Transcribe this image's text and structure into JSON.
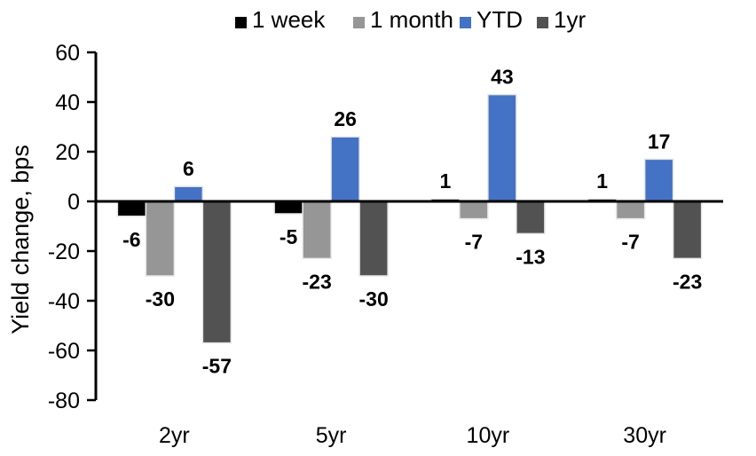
{
  "chart_data": {
    "type": "bar",
    "title": "",
    "categories": [
      "2yr",
      "5yr",
      "10yr",
      "30yr"
    ],
    "series": [
      {
        "name": "1 week",
        "color": "#000000",
        "values": [
          -6,
          -5,
          1,
          1
        ]
      },
      {
        "name": "1 month",
        "color": "#969696",
        "values": [
          -30,
          -23,
          -7,
          -7
        ]
      },
      {
        "name": "YTD",
        "color": "#4472C4",
        "values": [
          6,
          26,
          43,
          17
        ]
      },
      {
        "name": "1yr",
        "color": "#525252",
        "values": [
          -57,
          -30,
          -13,
          -23
        ]
      }
    ],
    "ylabel": "Yield change, bps",
    "xlabel": "",
    "ylim": [
      -80,
      60
    ],
    "yticks": [
      60,
      40,
      20,
      0,
      -20,
      -40,
      -60,
      -80
    ],
    "grid": false,
    "legend_position": "top",
    "value_labels": true
  },
  "colors": {
    "background": "#ffffff",
    "axis": "#000000",
    "bar_border": "#e7e7e7",
    "accent_blue": "#4472C4",
    "gray": "#969696",
    "dark_gray": "#525252",
    "black": "#000000"
  }
}
